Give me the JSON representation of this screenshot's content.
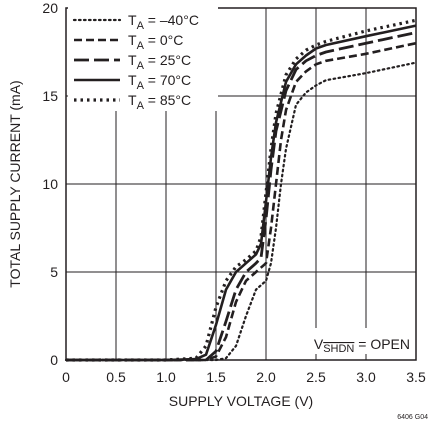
{
  "chart_data": {
    "type": "line",
    "xlabel": "SUPPLY VOLTAGE (V)",
    "ylabel": "TOTAL SUPPLY CURRENT (mA)",
    "xlim": [
      0,
      3.5
    ],
    "ylim": [
      0,
      20
    ],
    "x_ticks": [
      0,
      0.5,
      1.0,
      1.5,
      2.0,
      2.5,
      3.0,
      3.5
    ],
    "x_tick_labels": [
      "0",
      "0.5",
      "1.0",
      "1.5",
      "2.0",
      "2.5",
      "3.0",
      "3.5"
    ],
    "y_ticks": [
      0,
      5,
      10,
      15,
      20
    ],
    "y_tick_labels": [
      "0",
      "5",
      "10",
      "15",
      "20"
    ],
    "grid": true,
    "legend_position": "top-left",
    "annotation": {
      "prefix": "V",
      "subscript": "SHDN",
      "suffix": " = OPEN"
    },
    "corner_code": "6406 G04",
    "series": [
      {
        "name": "TA = –40°C",
        "label_main": "T",
        "label_sub": "A",
        "label_rest": " = –40°C",
        "dash": "dotted",
        "x": [
          0,
          1.0,
          1.5,
          1.6,
          1.7,
          1.8,
          1.9,
          2.0,
          2.05,
          2.1,
          2.15,
          2.2,
          2.3,
          2.4,
          2.5,
          2.6,
          3.0,
          3.5
        ],
        "y": [
          0,
          0,
          0,
          0.1,
          0.8,
          2.5,
          4.0,
          4.5,
          5.5,
          7.5,
          10.0,
          12.0,
          14.5,
          15.2,
          15.6,
          15.9,
          16.3,
          16.9
        ]
      },
      {
        "name": "TA = 0°C",
        "label_main": "T",
        "label_sub": "A",
        "label_rest": " = 0°C",
        "dash": "dashed-short",
        "x": [
          0,
          1.0,
          1.4,
          1.5,
          1.6,
          1.7,
          1.8,
          1.9,
          2.0,
          2.05,
          2.1,
          2.15,
          2.2,
          2.3,
          2.4,
          2.5,
          2.6,
          3.0,
          3.5
        ],
        "y": [
          0,
          0,
          0,
          0.2,
          1.3,
          3.3,
          4.5,
          5.0,
          5.5,
          7.5,
          10.0,
          12.5,
          14.2,
          15.8,
          16.4,
          16.8,
          17.0,
          17.4,
          18.0
        ]
      },
      {
        "name": "TA = 25°C",
        "label_main": "T",
        "label_sub": "A",
        "label_rest": " = 25°C",
        "dash": "dashed-long",
        "x": [
          0,
          1.0,
          1.4,
          1.5,
          1.6,
          1.7,
          1.8,
          1.9,
          1.95,
          2.0,
          2.05,
          2.1,
          2.2,
          2.3,
          2.4,
          2.5,
          2.6,
          3.0,
          3.5
        ],
        "y": [
          0,
          0,
          0,
          0.5,
          2.2,
          4.0,
          5.0,
          5.5,
          5.8,
          8.0,
          10.8,
          13.0,
          15.3,
          16.5,
          17.0,
          17.3,
          17.5,
          18.0,
          18.6
        ]
      },
      {
        "name": "TA = 70°C",
        "label_main": "T",
        "label_sub": "A",
        "label_rest": " = 70°C",
        "dash": "solid",
        "x": [
          0,
          1.0,
          1.3,
          1.4,
          1.5,
          1.6,
          1.7,
          1.8,
          1.9,
          1.95,
          2.0,
          2.05,
          2.1,
          2.2,
          2.3,
          2.4,
          2.5,
          2.6,
          3.0,
          3.5
        ],
        "y": [
          0,
          0,
          0.05,
          0.3,
          2.0,
          4.0,
          5.0,
          5.5,
          6.0,
          6.6,
          9.0,
          11.5,
          13.5,
          15.8,
          16.8,
          17.3,
          17.7,
          17.9,
          18.4,
          19.0
        ]
      },
      {
        "name": "TA = 85°C",
        "label_main": "T",
        "label_sub": "A",
        "label_rest": " = 85°C",
        "dash": "dotted-heavy",
        "x": [
          0,
          1.0,
          1.3,
          1.4,
          1.5,
          1.6,
          1.7,
          1.8,
          1.9,
          1.95,
          2.0,
          2.05,
          2.1,
          2.2,
          2.3,
          2.4,
          2.5,
          2.6,
          3.0,
          3.5
        ],
        "y": [
          0,
          0,
          0.1,
          0.8,
          3.0,
          4.5,
          5.3,
          5.7,
          6.2,
          7.0,
          9.5,
          12.0,
          14.0,
          16.2,
          17.1,
          17.6,
          17.9,
          18.1,
          18.7,
          19.3
        ]
      }
    ]
  }
}
